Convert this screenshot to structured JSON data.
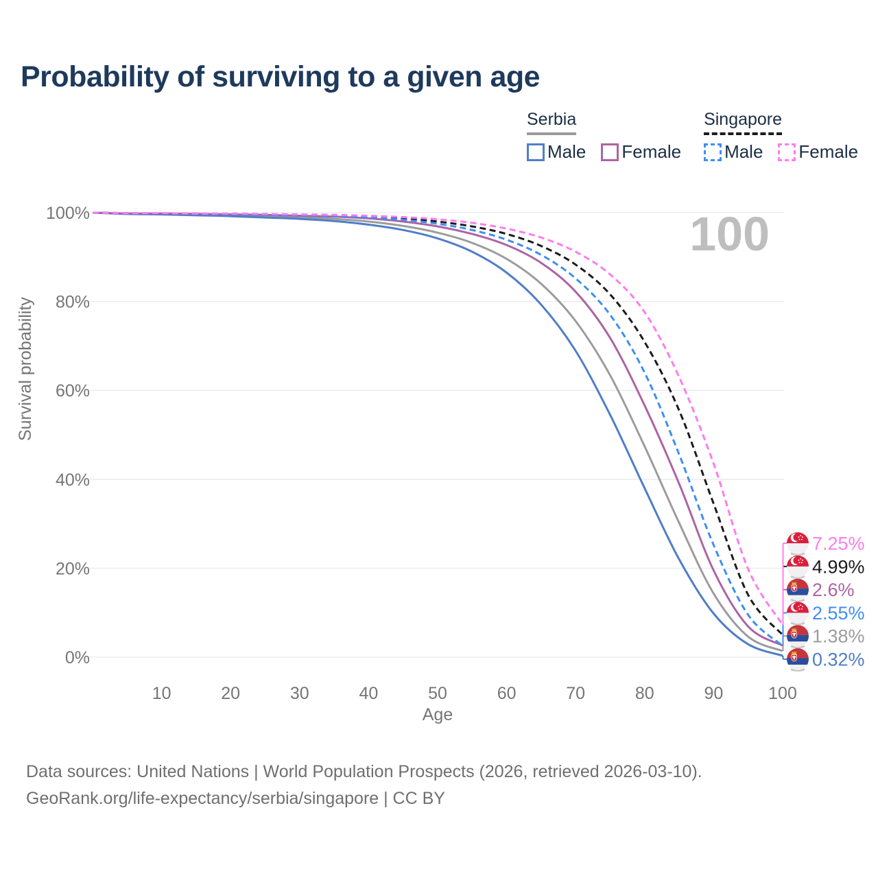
{
  "title": "Probability of surviving to a given age",
  "watermark": "100",
  "legend": {
    "groups": [
      {
        "label": "Serbia",
        "line_style": "solid",
        "line_color": "#9C9C9C",
        "items": [
          {
            "label": "Male",
            "color": "#4F7EC8",
            "dashed": false
          },
          {
            "label": "Female",
            "color": "#AC64A4",
            "dashed": false
          }
        ]
      },
      {
        "label": "Singapore",
        "line_style": "dashed",
        "line_color": "#1C1C1C",
        "items": [
          {
            "label": "Male",
            "color": "#3D8EF5",
            "dashed": true
          },
          {
            "label": "Female",
            "color": "#FD7DEF",
            "dashed": true
          }
        ]
      }
    ]
  },
  "chart_data": {
    "type": "line",
    "title": "Probability of surviving to a given age",
    "xlabel": "Age",
    "ylabel": "Survival probability",
    "xlim": [
      0,
      100
    ],
    "ylim": [
      0,
      100
    ],
    "x_ticks": [
      10,
      20,
      30,
      40,
      50,
      60,
      70,
      80,
      90,
      100
    ],
    "y_ticks": [
      0,
      20,
      40,
      60,
      80,
      100
    ],
    "y_tick_labels": [
      "0%",
      "20%",
      "40%",
      "60%",
      "80%",
      "100%"
    ],
    "grid": "horizontal",
    "legend_position": "top-right",
    "x": [
      0,
      5,
      10,
      15,
      20,
      25,
      30,
      35,
      40,
      45,
      50,
      55,
      60,
      65,
      70,
      75,
      80,
      85,
      90,
      95,
      100
    ],
    "series": [
      {
        "name": "Serbia Total",
        "country": "Serbia",
        "sex": "Both",
        "color": "#9C9C9C",
        "dashed": false,
        "end_label": "1.38%",
        "end_value": 1.38,
        "values": [
          100,
          99.8,
          99.7,
          99.6,
          99.4,
          99.2,
          99.0,
          98.6,
          98.0,
          97.0,
          95.5,
          93.2,
          89.6,
          84.0,
          75.6,
          63.4,
          47.4,
          30.2,
          14.3,
          4.6,
          1.38
        ]
      },
      {
        "name": "Serbia Male",
        "country": "Serbia",
        "sex": "Male",
        "color": "#4F7EC8",
        "dashed": false,
        "end_label": "0.32%",
        "end_value": 0.32,
        "values": [
          100,
          99.7,
          99.6,
          99.4,
          99.2,
          98.9,
          98.6,
          98.1,
          97.3,
          96.1,
          94.2,
          91.2,
          86.5,
          79.3,
          68.9,
          54.5,
          38.0,
          22.0,
          9.8,
          2.9,
          0.32
        ]
      },
      {
        "name": "Serbia Female",
        "country": "Serbia",
        "sex": "Female",
        "color": "#AC64A4",
        "dashed": false,
        "end_label": "2.6%",
        "end_value": 2.6,
        "values": [
          100,
          99.8,
          99.8,
          99.7,
          99.6,
          99.5,
          99.3,
          99.1,
          98.7,
          98.0,
          96.9,
          95.2,
          92.7,
          88.7,
          82.2,
          71.8,
          56.6,
          39.0,
          19.5,
          6.9,
          2.6
        ]
      },
      {
        "name": "Singapore Total",
        "country": "Singapore",
        "sex": "Both",
        "color": "#1C1C1C",
        "dashed": true,
        "end_label": "4.99%",
        "end_value": 4.99,
        "values": [
          100,
          99.9,
          99.8,
          99.8,
          99.7,
          99.6,
          99.5,
          99.4,
          99.1,
          98.7,
          98.0,
          96.9,
          95.2,
          92.5,
          88.3,
          81.6,
          70.9,
          55.5,
          34.5,
          14.0,
          4.99
        ]
      },
      {
        "name": "Singapore Male",
        "country": "Singapore",
        "sex": "Male",
        "color": "#3D8EF5",
        "dashed": true,
        "end_label": "2.55%",
        "end_value": 2.55,
        "values": [
          100,
          99.8,
          99.8,
          99.7,
          99.6,
          99.5,
          99.4,
          99.2,
          98.9,
          98.4,
          97.5,
          96.1,
          93.9,
          90.5,
          85.2,
          77.0,
          64.0,
          45.6,
          25.2,
          9.5,
          2.55
        ]
      },
      {
        "name": "Singapore Female",
        "country": "Singapore",
        "sex": "Female",
        "color": "#FD7DEF",
        "dashed": true,
        "end_label": "7.25%",
        "end_value": 7.25,
        "values": [
          100,
          99.9,
          99.9,
          99.8,
          99.8,
          99.7,
          99.6,
          99.5,
          99.3,
          99.0,
          98.5,
          97.7,
          96.4,
          94.4,
          91.2,
          86.1,
          77.6,
          63.0,
          43.5,
          19.8,
          7.25
        ]
      }
    ]
  },
  "colors": {
    "title": "#1E3A5C",
    "axis_text": "#757575",
    "gridline": "#EAEAEA",
    "watermark": "#BEBEBE",
    "footer_text": "#6F6F6F",
    "singapore_flag_red": "#DB1F3C",
    "serbia_flag_red": "#C6363C",
    "serbia_flag_blue": "#2A4E9E",
    "serbia_crown_gold": "#E9B63D"
  },
  "footer": {
    "line1": "Data sources: United Nations | World Population Prospects (2026, retrieved 2026-03-10).",
    "line2": "GeoRank.org/life-expectancy/serbia/singapore | CC BY"
  }
}
